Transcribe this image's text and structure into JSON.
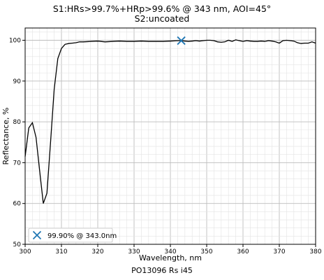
{
  "chart_data": {
    "type": "line",
    "title": "S1:HRs>99.7%+HRp>99.6% @ 343 nm, AOI=45°",
    "subtitle": "S2:uncoated",
    "xlabel": "Wavelength, nm",
    "ylabel": "Reflectance, %",
    "footer": "PO13096 Rs i45",
    "xlim": [
      300,
      380
    ],
    "ylim": [
      50,
      103
    ],
    "x_ticks": [
      300,
      310,
      320,
      330,
      340,
      350,
      360,
      370,
      380
    ],
    "y_ticks": [
      50,
      60,
      70,
      80,
      90,
      100
    ],
    "grid": true,
    "line_color": "#000000",
    "series": [
      {
        "x": [
          300,
          301,
          302,
          303,
          304,
          305,
          306,
          307,
          308,
          309,
          310,
          311,
          312,
          313,
          314,
          315,
          316,
          318,
          320,
          322,
          324,
          326,
          328,
          330,
          332,
          334,
          336,
          338,
          340,
          342,
          343,
          344,
          345,
          346,
          347,
          348,
          349,
          350,
          351,
          352,
          353,
          354,
          355,
          356,
          357,
          358,
          359,
          360,
          361,
          362,
          363,
          364,
          365,
          366,
          367,
          368,
          369,
          370,
          371,
          372,
          373,
          374,
          375,
          376,
          377,
          378,
          379,
          380
        ],
        "y": [
          71.5,
          78.5,
          79.8,
          76.2,
          68.0,
          60.0,
          62.5,
          75.0,
          88.0,
          95.5,
          98.0,
          99.0,
          99.2,
          99.3,
          99.4,
          99.6,
          99.6,
          99.7,
          99.8,
          99.6,
          99.7,
          99.8,
          99.7,
          99.7,
          99.8,
          99.7,
          99.7,
          99.7,
          99.8,
          99.9,
          99.9,
          99.8,
          99.7,
          99.8,
          99.9,
          99.8,
          99.9,
          100.0,
          100.0,
          99.9,
          99.6,
          99.5,
          99.6,
          100.0,
          99.7,
          100.1,
          99.9,
          99.7,
          99.9,
          99.8,
          99.7,
          99.7,
          99.8,
          99.7,
          99.9,
          99.8,
          99.6,
          99.3,
          99.9,
          100.0,
          99.9,
          99.8,
          99.4,
          99.2,
          99.3,
          99.3,
          99.6,
          99.3
        ]
      }
    ],
    "marker": {
      "x": 343.0,
      "y": 99.9,
      "symbol": "x",
      "color": "#1f77b4",
      "label": "99.90% @ 343.0nm"
    },
    "legend_position": "lower-left"
  }
}
